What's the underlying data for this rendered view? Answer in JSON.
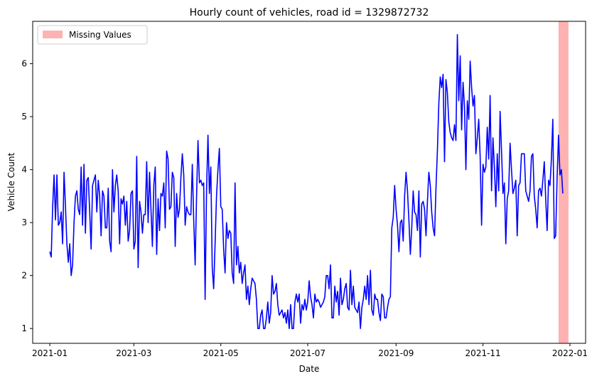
{
  "chart_data": {
    "type": "line",
    "title": "Hourly count of vehicles, road id = 1329872732",
    "xlabel": "Date",
    "ylabel": "Vehicle Count",
    "x_ticks": [
      "2021-01",
      "2021-03",
      "2021-05",
      "2021-07",
      "2021-09",
      "2021-11",
      "2022-01"
    ],
    "y_ticks": [
      "1",
      "2",
      "3",
      "4",
      "5",
      "6"
    ],
    "ylim": [
      0.72,
      6.8
    ],
    "xlim": [
      "2020-12-20",
      "2022-01-12"
    ],
    "grid": false,
    "legend_position": "top-left",
    "colors": {
      "series": "#0000ff",
      "missing": "#ff0000"
    },
    "missing_span": {
      "name": "Missing Values",
      "start": "2021-12-24",
      "end": "2021-12-31"
    },
    "series": [
      {
        "start_date": "2021-01-01",
        "step": "day",
        "values": [
          2.45,
          2.35,
          3.3,
          3.9,
          3.05,
          3.9,
          2.95,
          3.0,
          3.2,
          2.6,
          3.95,
          3.3,
          2.6,
          2.25,
          2.6,
          2.0,
          2.2,
          3.0,
          3.5,
          3.6,
          3.25,
          3.15,
          4.05,
          2.95,
          4.1,
          2.8,
          3.8,
          3.85,
          3.2,
          2.5,
          3.7,
          3.8,
          3.9,
          3.2,
          3.8,
          3.5,
          2.75,
          3.6,
          3.5,
          2.9,
          2.9,
          3.65,
          2.65,
          2.45,
          4.0,
          3.2,
          3.7,
          3.9,
          3.6,
          2.6,
          3.45,
          3.35,
          3.5,
          2.95,
          3.4,
          2.65,
          2.85,
          3.55,
          3.6,
          2.5,
          2.65,
          4.25,
          2.15,
          3.4,
          3.2,
          2.8,
          3.15,
          3.15,
          4.15,
          3.0,
          3.95,
          3.25,
          2.55,
          3.7,
          4.05,
          2.4,
          3.45,
          2.85,
          3.55,
          3.5,
          3.75,
          2.9,
          4.35,
          4.2,
          3.25,
          3.3,
          3.95,
          3.85,
          2.55,
          3.55,
          3.1,
          3.25,
          3.85,
          4.3,
          3.9,
          2.95,
          3.3,
          3.2,
          3.15,
          3.15,
          4.1,
          3.05,
          2.2,
          3.5,
          4.55,
          3.75,
          3.8,
          3.7,
          3.75,
          1.55,
          3.6,
          4.65,
          3.55,
          4.05,
          2.15,
          1.75,
          2.6,
          3.5,
          4.0,
          4.4,
          3.3,
          3.25,
          2.5,
          2.05,
          3.0,
          2.7,
          2.85,
          2.8,
          2.05,
          1.85,
          3.75,
          2.2,
          2.55,
          2.05,
          2.25,
          1.85,
          2.05,
          2.2,
          1.55,
          1.8,
          1.45,
          1.75,
          1.95,
          1.9,
          1.85,
          1.55,
          1.0,
          1.0,
          1.25,
          1.35,
          1.0,
          1.0,
          1.2,
          1.5,
          1.1,
          1.3,
          2.0,
          1.65,
          1.7,
          1.85,
          1.45,
          1.25,
          1.3,
          1.35,
          1.2,
          1.3,
          1.1,
          1.35,
          1.0,
          1.45,
          1.0,
          1.0,
          1.5,
          1.65,
          1.5,
          1.65,
          1.1,
          1.45,
          1.35,
          1.55,
          1.35,
          1.5,
          1.9,
          1.6,
          1.45,
          1.2,
          1.65,
          1.5,
          1.55,
          1.5,
          1.4,
          1.45,
          1.5,
          1.6,
          2.0,
          2.0,
          1.75,
          2.2,
          1.2,
          1.2,
          1.8,
          1.5,
          1.7,
          1.25,
          1.95,
          1.45,
          1.55,
          1.75,
          1.85,
          1.4,
          1.35,
          2.1,
          1.45,
          1.8,
          1.4,
          1.35,
          1.3,
          1.5,
          1.0,
          1.4,
          1.55,
          1.8,
          1.55,
          2.0,
          1.45,
          2.1,
          1.35,
          1.25,
          1.65,
          1.55,
          1.55,
          1.3,
          1.15,
          1.65,
          1.6,
          1.2,
          1.2,
          1.4,
          1.55,
          1.6,
          2.9,
          3.1,
          3.7,
          3.25,
          2.95,
          2.45,
          3.0,
          3.05,
          2.65,
          3.5,
          3.95,
          3.6,
          3.05,
          2.4,
          2.9,
          3.6,
          3.2,
          3.15,
          2.85,
          3.6,
          2.35,
          3.35,
          3.4,
          3.25,
          2.75,
          3.4,
          3.95,
          3.7,
          3.2,
          2.9,
          2.75,
          3.65,
          4.35,
          5.25,
          5.75,
          5.55,
          5.8,
          4.15,
          5.7,
          5.45,
          4.9,
          4.7,
          4.6,
          4.55,
          4.85,
          4.55,
          6.55,
          5.3,
          6.15,
          4.75,
          5.65,
          5.2,
          4.0,
          5.3,
          4.95,
          6.05,
          5.55,
          5.2,
          5.4,
          4.3,
          4.6,
          4.95,
          4.25,
          2.95,
          4.1,
          3.95,
          4.05,
          4.8,
          4.2,
          5.4,
          3.6,
          4.6,
          4.05,
          3.3,
          4.3,
          3.6,
          5.1,
          4.35,
          3.55,
          3.75,
          2.6,
          3.45,
          3.6,
          4.5,
          4.0,
          3.55,
          3.65,
          3.8,
          2.75,
          3.7,
          3.75,
          4.3,
          4.3,
          4.3,
          3.6,
          3.5,
          3.4,
          3.6,
          4.25,
          4.3,
          3.5,
          3.25,
          2.9,
          3.6,
          3.65,
          3.5,
          3.8,
          4.15,
          3.45,
          2.85,
          3.8,
          3.7,
          4.2,
          4.95,
          2.7,
          2.75,
          3.85,
          4.65,
          3.9,
          4.0,
          3.55
        ]
      }
    ]
  }
}
